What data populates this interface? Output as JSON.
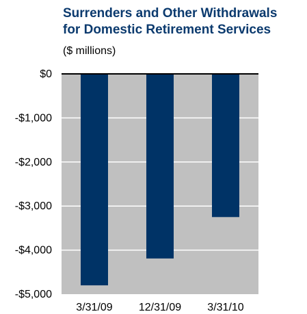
{
  "chart_data": {
    "type": "bar",
    "title": "Surrenders and Other Withdrawals for Domestic Retirement Services",
    "title_lines": [
      "Surrenders and Other Withdrawals",
      "for Domestic Retirement Services"
    ],
    "subtitle": "($ millions)",
    "xlabel": "",
    "ylabel": "",
    "categories": [
      "3/31/09",
      "12/31/09",
      "3/31/10"
    ],
    "values": [
      -4800,
      -4190,
      -3250
    ],
    "ylim": [
      -5000,
      0
    ],
    "yticks": [
      0,
      -1000,
      -2000,
      -3000,
      -4000,
      -5000
    ],
    "ytick_labels": [
      "$0",
      "-$1,000",
      "-$2,000",
      "-$3,000",
      "-$4,000",
      "-$5,000"
    ],
    "grid": true,
    "colors": {
      "title": "#0b3a6e",
      "bar": "#003366",
      "plot_background": "#c0c0c0",
      "gridline": "#ffffff",
      "zero_line": "#000000"
    }
  }
}
